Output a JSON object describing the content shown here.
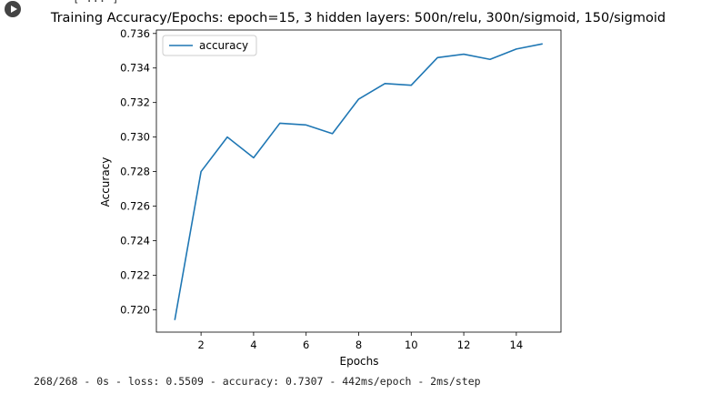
{
  "cell": {
    "run_button": "run-cell",
    "clipped_output_fragment": "[ ... ]",
    "log_line": "268/268 - 0s - loss: 0.5509 - accuracy: 0.7307 - 442ms/epoch - 2ms/step"
  },
  "chart_data": {
    "type": "line",
    "title": "Training Accuracy/Epochs: epoch=15, 3 hidden layers: 500n/relu, 300n/sigmoid, 150/sigmoid",
    "xlabel": "Epochs",
    "ylabel": "Accuracy",
    "xlim": [
      0.3,
      15.7
    ],
    "ylim": [
      0.7187,
      0.7362
    ],
    "xticks": [
      2,
      4,
      6,
      8,
      10,
      12,
      14
    ],
    "xtick_labels": [
      "2",
      "4",
      "6",
      "8",
      "10",
      "12",
      "14"
    ],
    "yticks": [
      0.72,
      0.722,
      0.724,
      0.726,
      0.728,
      0.73,
      0.732,
      0.734,
      0.736
    ],
    "ytick_labels": [
      "0.720",
      "0.722",
      "0.724",
      "0.726",
      "0.728",
      "0.730",
      "0.732",
      "0.734",
      "0.736"
    ],
    "grid": false,
    "legend_position": "top-left",
    "series": [
      {
        "name": "accuracy",
        "color": "#1f77b4",
        "x": [
          1,
          2,
          3,
          4,
          5,
          6,
          7,
          8,
          9,
          10,
          11,
          12,
          13,
          14,
          15
        ],
        "y": [
          0.7194,
          0.728,
          0.73,
          0.7288,
          0.7308,
          0.7307,
          0.7302,
          0.7322,
          0.7331,
          0.733,
          0.7346,
          0.7348,
          0.7345,
          0.7351,
          0.7354
        ]
      }
    ]
  }
}
